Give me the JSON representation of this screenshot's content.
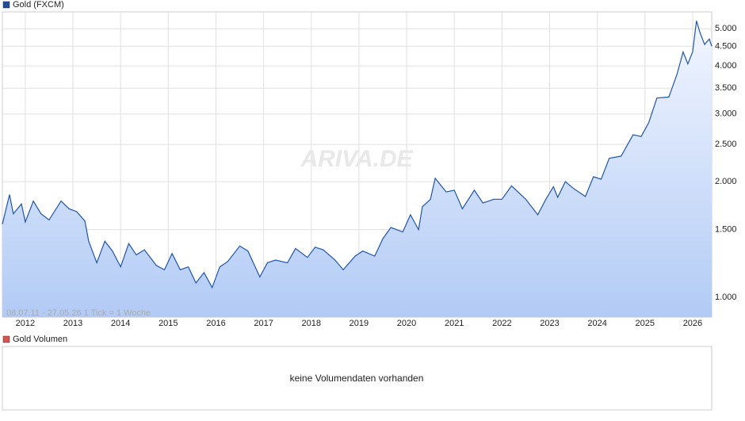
{
  "chart_data": {
    "type": "line",
    "legend": "Gold (FXCM)",
    "watermark": "ARIVA.DE",
    "footer": "08.07.11 - 27.05.26   1 Tick = 1 Woche",
    "log_scale": true,
    "grid": true,
    "series": [
      {
        "name": "Gold (FXCM)",
        "color": "#1f55b0",
        "x": [
          2011.52,
          2011.67,
          2011.75,
          2011.92,
          2012.0,
          2012.17,
          2012.33,
          2012.5,
          2012.75,
          2012.92,
          2013.08,
          2013.25,
          2013.33,
          2013.5,
          2013.67,
          2013.83,
          2014.0,
          2014.17,
          2014.33,
          2014.5,
          2014.75,
          2014.92,
          2015.08,
          2015.25,
          2015.42,
          2015.58,
          2015.75,
          2015.92,
          2016.08,
          2016.25,
          2016.5,
          2016.67,
          2016.92,
          2017.08,
          2017.25,
          2017.5,
          2017.67,
          2017.92,
          2018.08,
          2018.25,
          2018.5,
          2018.67,
          2018.92,
          2019.08,
          2019.33,
          2019.5,
          2019.67,
          2019.92,
          2020.08,
          2020.25,
          2020.33,
          2020.5,
          2020.6,
          2020.83,
          2021.0,
          2021.17,
          2021.42,
          2021.6,
          2021.83,
          2022.0,
          2022.2,
          2022.5,
          2022.75,
          2022.92,
          2023.08,
          2023.17,
          2023.33,
          2023.5,
          2023.75,
          2023.92,
          2024.08,
          2024.25,
          2024.5,
          2024.75,
          2024.92,
          2025.08,
          2025.25,
          2025.5,
          2025.67,
          2025.8,
          2025.9,
          2026.0,
          2026.08,
          2026.15,
          2026.25,
          2026.35,
          2026.4
        ],
        "values": [
          1550,
          1850,
          1650,
          1750,
          1570,
          1780,
          1650,
          1590,
          1780,
          1700,
          1670,
          1580,
          1400,
          1230,
          1400,
          1320,
          1200,
          1380,
          1290,
          1330,
          1210,
          1180,
          1300,
          1180,
          1200,
          1090,
          1160,
          1060,
          1200,
          1240,
          1360,
          1320,
          1130,
          1230,
          1250,
          1230,
          1340,
          1270,
          1350,
          1330,
          1250,
          1180,
          1280,
          1320,
          1280,
          1420,
          1520,
          1480,
          1640,
          1500,
          1720,
          1800,
          2040,
          1880,
          1900,
          1700,
          1900,
          1760,
          1800,
          1800,
          1950,
          1800,
          1640,
          1800,
          1940,
          1820,
          2000,
          1920,
          1830,
          2060,
          2030,
          2300,
          2330,
          2650,
          2620,
          2850,
          3300,
          3320,
          3800,
          4350,
          4050,
          4350,
          5240,
          4900,
          4550,
          4700,
          4500
        ]
      }
    ],
    "xlim": [
      2011.52,
      2026.4
    ],
    "xticks": [
      2012,
      2013,
      2014,
      2015,
      2016,
      2017,
      2018,
      2019,
      2020,
      2021,
      2022,
      2023,
      2024,
      2025,
      2026
    ],
    "ylim": [
      888,
      5530
    ],
    "yticks": [
      {
        "value": 1000,
        "label": "1.000"
      },
      {
        "value": 1500,
        "label": "1.500"
      },
      {
        "value": 2000,
        "label": "2.000"
      },
      {
        "value": 2500,
        "label": "2.500"
      },
      {
        "value": 3000,
        "label": "3.000"
      },
      {
        "value": 3500,
        "label": "3.500"
      },
      {
        "value": 4000,
        "label": "4.000"
      },
      {
        "value": 4500,
        "label": "4.500"
      },
      {
        "value": 5000,
        "label": "5.000"
      }
    ],
    "volume_legend": "Gold Volumen",
    "volume_message": "keine Volumendaten vorhanden"
  }
}
